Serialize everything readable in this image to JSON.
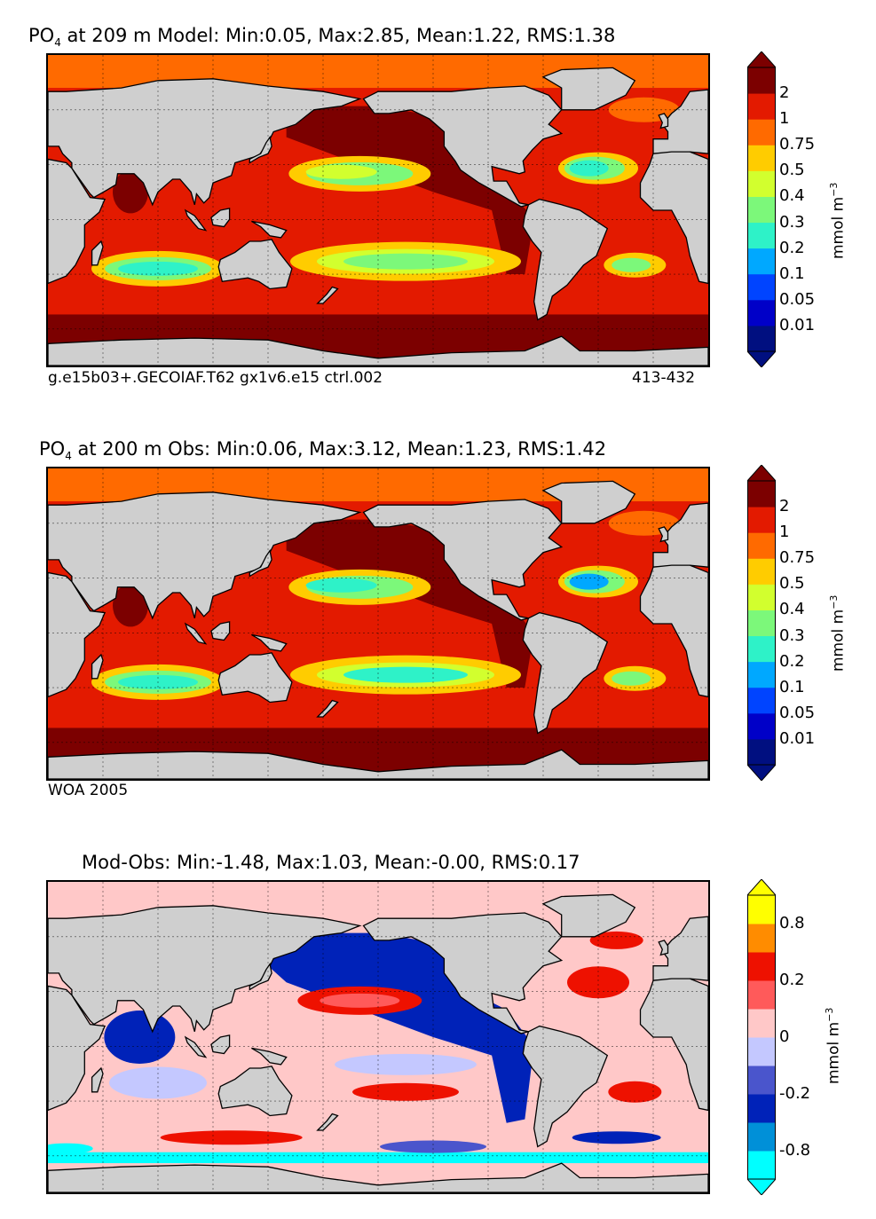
{
  "panels": [
    {
      "title_prefix": "PO",
      "title_sub": "4",
      "title_rest": " at 209 m Model: Min:0.05, Max:2.85, Mean:1.22, RMS:1.38",
      "caption_left": "g.e15b03+.GECOIAF.T62 gx1v6.e15 ctrl.002",
      "caption_right": "413-432",
      "colorbar_unit": "mmol m",
      "colorbar_unit_sup": "−3"
    },
    {
      "title_prefix": "PO",
      "title_sub": "4",
      "title_rest": " at 200 m Obs: Min:0.06, Max:3.12, Mean:1.23, RMS:1.42",
      "caption_left": "WOA 2005",
      "caption_right": "",
      "colorbar_unit": "mmol m",
      "colorbar_unit_sup": "−3"
    },
    {
      "title_prefix": "",
      "title_sub": "",
      "title_rest": "Mod-Obs: Min:-1.48, Max:1.03, Mean:-0.00, RMS:0.17",
      "caption_left": "",
      "caption_right": "",
      "colorbar_unit": "mmol m",
      "colorbar_unit_sup": "−3"
    }
  ],
  "chart_data": [
    {
      "type": "heatmap",
      "title": "PO4 at 209 m Model: Min:0.05, Max:2.85, Mean:1.22, RMS:1.38",
      "variable": "PO4",
      "depth_m": 209,
      "stats": {
        "min": 0.05,
        "max": 2.85,
        "mean": 1.22,
        "rms": 1.38
      },
      "colorbar": {
        "ticks": [
          "0.01",
          "0.05",
          "0.1",
          "0.2",
          "0.3",
          "0.4",
          "0.5",
          "0.75",
          "1",
          "2"
        ],
        "colors": [
          "#000f80",
          "#0000c8",
          "#0044ff",
          "#00a8ff",
          "#2ef2c8",
          "#7cf87a",
          "#d2ff2e",
          "#ffcc00",
          "#ff6a00",
          "#e31a00",
          "#7c0000"
        ],
        "extend": "both",
        "label": "mmol m-3"
      },
      "land_color": "#cfcfcf",
      "grid": true
    },
    {
      "type": "heatmap",
      "title": "PO4 at 200 m Obs: Min:0.06, Max:3.12, Mean:1.23, RMS:1.42",
      "variable": "PO4",
      "depth_m": 200,
      "stats": {
        "min": 0.06,
        "max": 3.12,
        "mean": 1.23,
        "rms": 1.42
      },
      "colorbar": {
        "ticks": [
          "0.01",
          "0.05",
          "0.1",
          "0.2",
          "0.3",
          "0.4",
          "0.5",
          "0.75",
          "1",
          "2"
        ],
        "colors": [
          "#000f80",
          "#0000c8",
          "#0044ff",
          "#00a8ff",
          "#2ef2c8",
          "#7cf87a",
          "#d2ff2e",
          "#ffcc00",
          "#ff6a00",
          "#e31a00",
          "#7c0000"
        ],
        "extend": "both",
        "label": "mmol m-3"
      },
      "land_color": "#cfcfcf",
      "grid": true
    },
    {
      "type": "heatmap",
      "title": "Mod-Obs: Min:-1.48, Max:1.03, Mean:-0.00, RMS:0.17",
      "stats": {
        "min": -1.48,
        "max": 1.03,
        "mean": -0.0,
        "rms": 0.17
      },
      "colorbar": {
        "ticks": [
          "-0.8",
          "",
          "-0.2",
          "",
          "0",
          "",
          "0.2",
          "",
          "0.8"
        ],
        "colors": [
          "#00ffff",
          "#0090d8",
          "#0022b8",
          "#4a55cc",
          "#c4c8ff",
          "#ffc8c8",
          "#ff5a5a",
          "#ee1100",
          "#ff8c00",
          "#ffff00"
        ],
        "extend": "both",
        "label": "mmol m-3"
      },
      "land_color": "#cfcfcf",
      "grid": true
    }
  ]
}
